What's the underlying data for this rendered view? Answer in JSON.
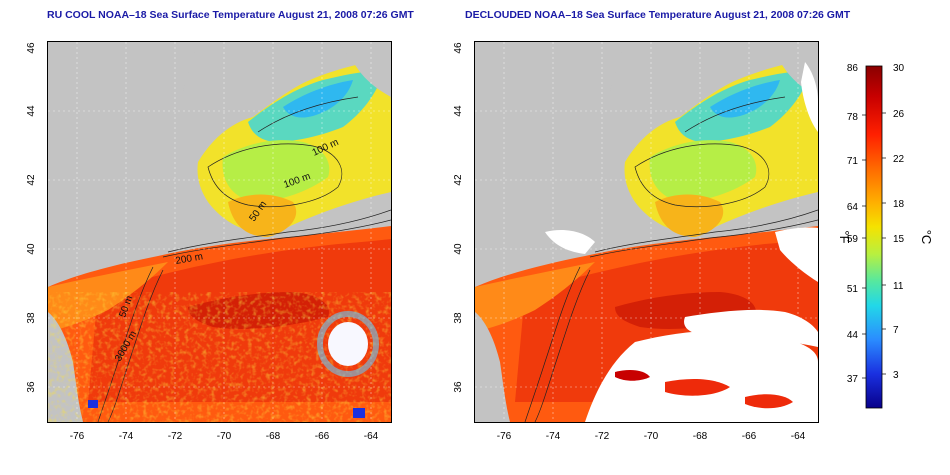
{
  "panels": [
    {
      "title": "RU COOL NOAA–18 Sea Surface Temperature August 21, 2008 07:26 GMT",
      "variant": "cool"
    },
    {
      "title": "DECLOUDED NOAA–18 Sea Surface Temperature August 21, 2008 07:26 GMT",
      "variant": "declouded"
    }
  ],
  "axes": {
    "lon_ticks": [
      "-76",
      "-74",
      "-72",
      "-70",
      "-68",
      "-66",
      "-64"
    ],
    "lat_ticks": [
      "36",
      "38",
      "40",
      "42",
      "44",
      "46"
    ]
  },
  "contour_labels": [
    "100 m",
    "100 m",
    "50 m",
    "200 m",
    "50 m",
    "3000 m"
  ],
  "colorbar": {
    "fahrenheit_label": "°F",
    "celsius_label": "°C",
    "fahrenheit_ticks": [
      "86",
      "78",
      "71",
      "64",
      "59",
      "51",
      "44",
      "37"
    ],
    "celsius_ticks": [
      "30",
      "26",
      "22",
      "18",
      "15",
      "11",
      "7",
      "3"
    ],
    "colors": [
      "#8a0000",
      "#c80000",
      "#ff2000",
      "#ff6a00",
      "#ffb000",
      "#f5e200",
      "#b8f040",
      "#55e8a0",
      "#22d8e8",
      "#2a8cff",
      "#1a30e0",
      "#08008a"
    ]
  },
  "colors": {
    "land": "#c3c3c3",
    "title": "#1a1aa6"
  }
}
